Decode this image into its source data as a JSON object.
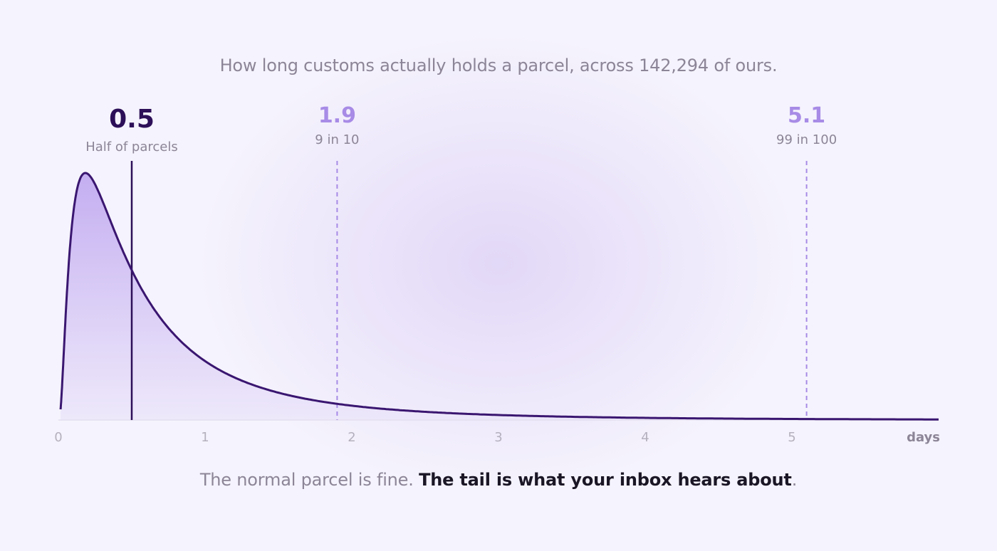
{
  "header": {
    "title": "How long customs actually holds a parcel, across 142,294 of ours."
  },
  "footer": {
    "plain": "The normal parcel is fine. ",
    "emphasis": "The tail is what your inbox hears about",
    "end": "."
  },
  "colors": {
    "curve": "#3a1670",
    "fill_top": "#c1aaf0",
    "fill_bottom": "#ece6fa",
    "median": "#2c0f58",
    "percentile": "#a78be6",
    "axis_text": "#b5b0bd",
    "axis_unit": "#8c8597"
  },
  "chart_data": {
    "type": "area",
    "xlabel": "days",
    "ylabel": "",
    "xlim": [
      0,
      6
    ],
    "xticks": [
      "0",
      "1",
      "2",
      "3",
      "4",
      "5"
    ],
    "distribution": "lognormal",
    "median_days": 0.5,
    "series": [
      {
        "x": [
          0.0,
          0.05,
          0.1,
          0.15,
          0.18,
          0.25,
          0.3,
          0.4,
          0.5,
          0.6,
          0.8,
          1.0,
          1.2,
          1.5,
          1.9,
          2.5,
          3.0,
          4.0,
          5.0,
          6.0
        ],
        "y": [
          0.1,
          0.65,
          0.95,
          1.0,
          1.0,
          0.96,
          0.9,
          0.78,
          0.56,
          0.45,
          0.33,
          0.23,
          0.17,
          0.11,
          0.065,
          0.032,
          0.02,
          0.012,
          0.007,
          0.005
        ]
      }
    ],
    "markers": [
      {
        "value": 0.5,
        "display": "0.5",
        "label": "Half of parcels",
        "style": "solid"
      },
      {
        "value": 1.9,
        "display": "1.9",
        "label": "9 in 10",
        "style": "dashed"
      },
      {
        "value": 5.1,
        "display": "5.1",
        "label": "99 in 100",
        "style": "dashed"
      }
    ]
  }
}
